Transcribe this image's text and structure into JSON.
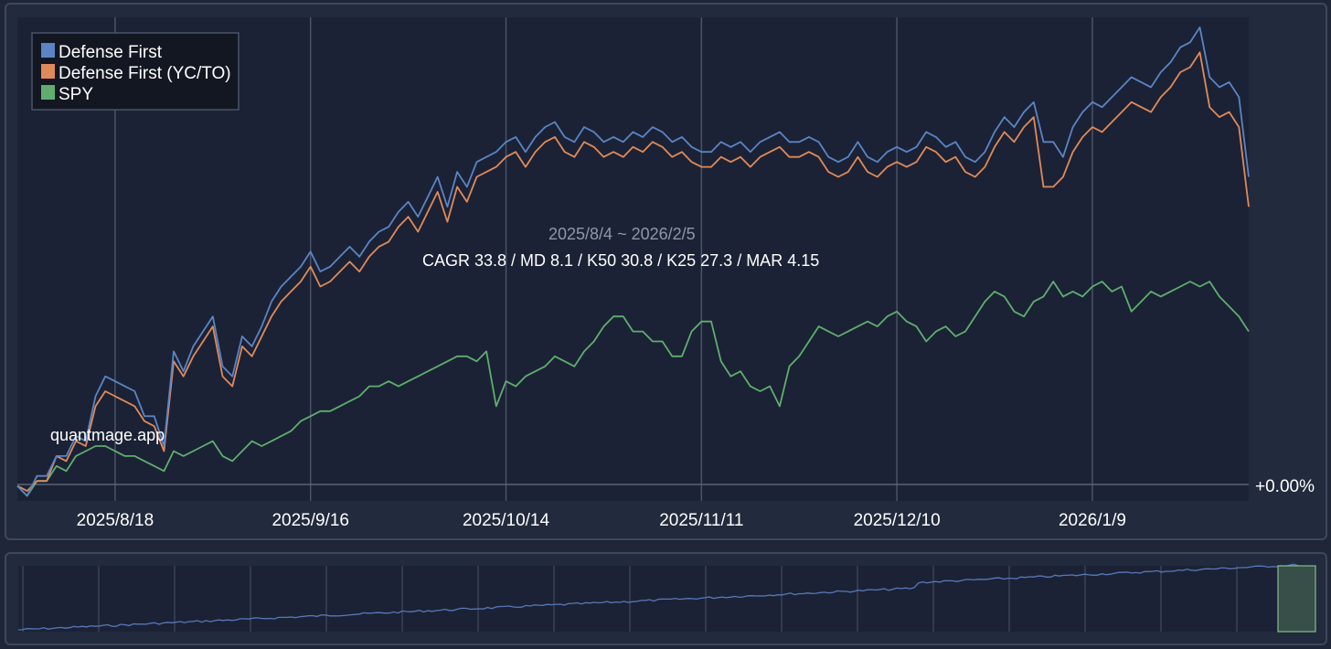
{
  "chart_data": {
    "type": "line",
    "watermark": "quantmage.app",
    "date_range_label": "2025/8/4 ~ 2026/2/5",
    "stats_label": "CAGR 33.8 / MD 8.1 / K50 30.8 / K25 27.3 / MAR 4.15",
    "x_tick_labels": [
      "2025/8/18",
      "2025/9/16",
      "2025/10/14",
      "2025/11/11",
      "2025/12/10",
      "2026/1/9"
    ],
    "x_tick_indices": [
      10,
      30,
      50,
      70,
      90,
      110
    ],
    "baseline_label": "+0.00%",
    "ylim": [
      -1.5,
      47
    ],
    "grid": true,
    "legend_position": "top-left",
    "colors": {
      "background": "#1b2235",
      "grid": "#4a5368",
      "baseline": "#5a6377",
      "navigator_line": "#5878b8",
      "navigator_window": "#3f5a4f"
    },
    "series": [
      {
        "name": "Defense First",
        "color": "#5b84c4",
        "values": [
          0.0,
          -1.0,
          1.0,
          1.0,
          3.0,
          3.0,
          5.0,
          4.5,
          9.0,
          11.0,
          10.5,
          10.0,
          9.5,
          7.0,
          7.0,
          4.0,
          13.5,
          11.5,
          14.0,
          15.5,
          17.0,
          12.0,
          11.0,
          15.0,
          14.0,
          16.0,
          18.5,
          20.0,
          21.0,
          22.0,
          23.5,
          21.5,
          22.0,
          23.0,
          24.0,
          23.0,
          24.5,
          25.5,
          26.0,
          27.5,
          28.5,
          27.0,
          29.0,
          31.0,
          28.0,
          31.5,
          30.0,
          32.5,
          33.0,
          33.5,
          34.5,
          35.0,
          33.5,
          35.0,
          36.0,
          36.5,
          35.0,
          34.5,
          36.0,
          35.5,
          34.5,
          35.0,
          34.5,
          35.5,
          35.0,
          36.0,
          35.5,
          34.5,
          35.0,
          34.0,
          33.5,
          33.5,
          34.5,
          34.0,
          34.5,
          33.5,
          34.5,
          35.0,
          35.5,
          34.5,
          34.5,
          35.0,
          34.5,
          33.0,
          32.5,
          33.0,
          34.5,
          33.0,
          32.5,
          33.5,
          34.0,
          33.5,
          34.0,
          35.5,
          35.0,
          34.0,
          34.5,
          33.0,
          32.5,
          33.5,
          35.5,
          37.0,
          36.0,
          37.5,
          38.5,
          34.5,
          34.5,
          33.0,
          36.0,
          37.5,
          38.5,
          38.0,
          39.0,
          40.0,
          41.0,
          40.5,
          40.0,
          41.5,
          42.5,
          44.0,
          44.5,
          46.0,
          41.0,
          40.0,
          40.5,
          39.0,
          31.0
        ],
        "note": "hidden"
      },
      {
        "name": "Defense First (YC/TO)",
        "color": "#e08a5a",
        "values": [
          0.0,
          -0.5,
          0.5,
          0.5,
          3.0,
          2.5,
          4.5,
          4.0,
          8.0,
          9.5,
          9.0,
          8.5,
          8.0,
          6.5,
          6.0,
          3.5,
          12.5,
          11.0,
          13.0,
          14.5,
          16.0,
          11.0,
          10.0,
          14.0,
          13.0,
          15.0,
          17.0,
          18.5,
          19.5,
          20.5,
          22.0,
          20.0,
          20.5,
          21.5,
          22.5,
          21.5,
          23.0,
          24.0,
          24.5,
          26.0,
          27.0,
          25.5,
          27.5,
          29.5,
          26.5,
          30.0,
          28.5,
          31.0,
          31.5,
          32.0,
          33.0,
          33.5,
          32.0,
          33.5,
          34.5,
          35.0,
          33.5,
          33.0,
          34.5,
          34.0,
          33.0,
          33.5,
          33.0,
          34.0,
          33.5,
          34.5,
          34.0,
          33.0,
          33.5,
          32.5,
          32.0,
          32.0,
          33.0,
          32.5,
          33.0,
          32.0,
          33.0,
          33.5,
          34.0,
          33.0,
          33.0,
          33.5,
          33.0,
          31.5,
          31.0,
          31.5,
          33.0,
          31.5,
          31.0,
          32.0,
          32.5,
          32.0,
          32.5,
          34.0,
          33.5,
          32.5,
          33.0,
          31.5,
          31.0,
          32.0,
          34.0,
          35.5,
          34.5,
          36.0,
          37.0,
          30.0,
          30.0,
          31.0,
          33.5,
          35.0,
          36.0,
          35.5,
          36.5,
          37.5,
          38.5,
          38.0,
          37.5,
          39.0,
          40.0,
          41.5,
          42.0,
          43.5,
          38.0,
          37.0,
          37.5,
          36.0,
          28.0
        ]
      },
      {
        "name": "SPY",
        "color": "#5fae6e",
        "values": [
          0.0,
          -1.0,
          0.5,
          0.5,
          2.0,
          1.5,
          3.0,
          3.5,
          4.0,
          4.0,
          3.5,
          3.0,
          3.0,
          2.5,
          2.0,
          1.5,
          3.5,
          3.0,
          3.5,
          4.0,
          4.5,
          3.0,
          2.5,
          3.5,
          4.5,
          4.0,
          4.5,
          5.0,
          5.5,
          6.5,
          7.0,
          7.5,
          7.5,
          8.0,
          8.5,
          9.0,
          10.0,
          10.0,
          10.5,
          10.0,
          10.5,
          11.0,
          11.5,
          12.0,
          12.5,
          13.0,
          13.0,
          12.5,
          13.5,
          8.0,
          10.5,
          10.0,
          11.0,
          11.5,
          12.0,
          13.0,
          12.5,
          12.0,
          13.5,
          14.5,
          16.0,
          17.0,
          17.0,
          15.5,
          15.5,
          14.5,
          14.5,
          13.0,
          13.0,
          15.5,
          16.5,
          16.5,
          12.5,
          11.0,
          11.5,
          10.0,
          9.5,
          10.0,
          8.0,
          12.0,
          13.0,
          14.5,
          16.0,
          15.5,
          15.0,
          15.5,
          16.0,
          16.5,
          16.0,
          17.0,
          17.5,
          16.5,
          16.0,
          14.5,
          15.5,
          16.0,
          15.0,
          15.5,
          17.0,
          18.5,
          19.5,
          19.0,
          17.5,
          17.0,
          18.5,
          19.0,
          20.5,
          19.0,
          19.5,
          19.0,
          20.0,
          20.5,
          19.5,
          20.0,
          17.5,
          18.5,
          19.5,
          19.0,
          19.5,
          20.0,
          20.5,
          20.0,
          20.5,
          19.0,
          18.0,
          17.0,
          15.5
        ]
      }
    ]
  }
}
